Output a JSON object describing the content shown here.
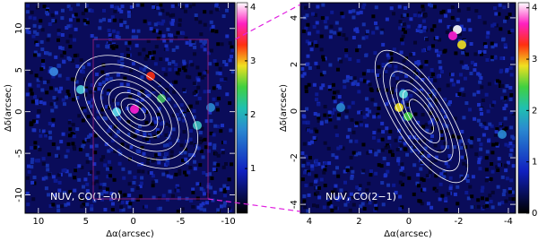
{
  "chart_data": [
    {
      "type": "image",
      "label": "NUV, CO(1−0)",
      "xlabel": "Δα(arcsec)",
      "ylabel": "Δδ(arcsec)",
      "xlim": [
        11.4,
        -10.7
      ],
      "xticks": [
        10,
        5,
        0,
        -5,
        -10
      ],
      "ylim": [
        -12.2,
        13.1
      ],
      "yticks": [
        -10,
        -5,
        0,
        5,
        10
      ],
      "clim": [
        0.17,
        4.08
      ],
      "cticks": [
        1,
        2,
        3,
        4
      ]
    },
    {
      "type": "image",
      "label": "NUV, CO(2−1)",
      "xlabel": "Δα(arcsec)",
      "ylabel": "Δδ(arcsec)",
      "xlim": [
        4.36,
        -4.29
      ],
      "xticks": [
        4,
        2,
        0,
        -2,
        -4
      ],
      "ylim": [
        -4.38,
        4.65
      ],
      "yticks": [
        -4,
        -2,
        0,
        2,
        4
      ],
      "clim": [
        0,
        4.1
      ],
      "cticks": [
        0,
        1,
        2,
        3,
        4
      ]
    }
  ]
}
